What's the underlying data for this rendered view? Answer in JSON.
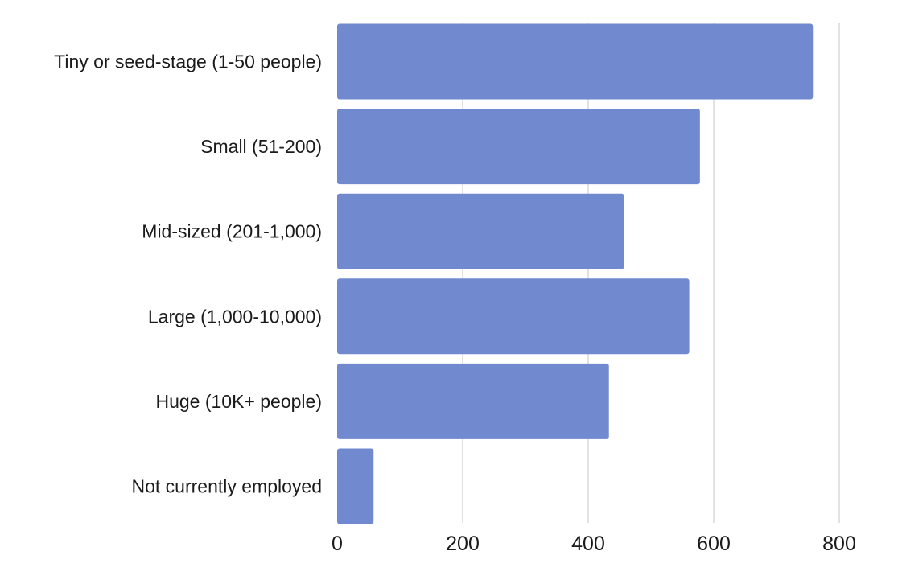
{
  "chart_data": {
    "type": "bar",
    "orientation": "horizontal",
    "categories": [
      "Tiny or seed-stage (1-50 people)",
      "Small (51-200)",
      "Mid-sized (201-1,000)",
      "Large (1,000-10,000)",
      "Huge (10K+ people)",
      "Not currently employed"
    ],
    "values": [
      758,
      578,
      457,
      561,
      433,
      58
    ],
    "xlim": [
      0,
      800
    ],
    "x_ticks": [
      "0",
      "200",
      "400",
      "600",
      "800"
    ],
    "grid": "vertical",
    "bar_color": "#7089cf",
    "grid_color": "#d9d9d9",
    "title": "",
    "xlabel": "",
    "ylabel": ""
  }
}
